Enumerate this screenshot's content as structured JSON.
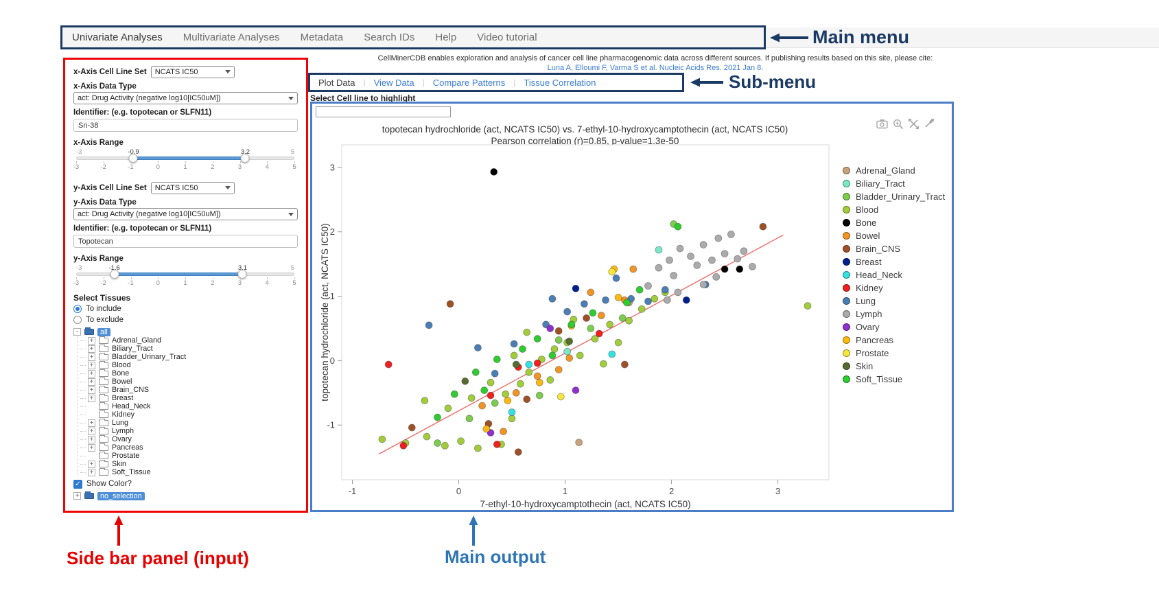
{
  "annotations": {
    "main_menu_label": "Main menu",
    "sub_menu_label": "Sub-menu",
    "sidebar_label": "Side bar panel (input)",
    "main_output_label": "Main output"
  },
  "ui_colors": {
    "ann_navy": "#1b3a63",
    "ann_red": "#e60000",
    "ann_blue": "#2e75b6",
    "sidebar_box_red": "#ee0404",
    "output_box_blue": "#4a7cc7",
    "link_blue": "#3a7bd5",
    "selection_blue": "#4d8fd6",
    "slider_blue": "#5b9bd5",
    "checkbox_blue": "#2e7ad1",
    "folder_blue": "#3a6fb0"
  },
  "main_menu": {
    "items": [
      {
        "label": "Univariate Analyses",
        "active": true
      },
      {
        "label": "Multivariate Analyses",
        "active": false
      },
      {
        "label": "Metadata",
        "active": false
      },
      {
        "label": "Search IDs",
        "active": false
      },
      {
        "label": "Help",
        "active": false
      },
      {
        "label": "Video tutorial",
        "active": false
      }
    ]
  },
  "citation": {
    "line1": "CellMinerCDB enables exploration and analysis of cancer cell line pharmacogenomic data across different sources. If publishing results based on this site, please cite:",
    "link": "Luna A, Elloumi F, Varma S et al. Nucleic Acids Res. 2021 Jan 8."
  },
  "sub_menu": {
    "items": [
      {
        "label": "Plot Data",
        "active": true
      },
      {
        "label": "View Data",
        "active": false
      },
      {
        "label": "Compare Patterns",
        "active": false
      },
      {
        "label": "Tissue Correlation",
        "active": false
      }
    ]
  },
  "highlight_label": "Select Cell line to highlight",
  "highlight_value": "",
  "sidebar": {
    "x_axis": {
      "cell_line_set_label": "x-Axis Cell Line Set",
      "cell_line_set_value": "NCATS IC50",
      "data_type_label": "x-Axis Data Type",
      "data_type_value": "act: Drug Activity (negative log10[IC50uM])",
      "identifier_label": "Identifier: (e.g. topotecan or SLFN11)",
      "identifier_value": "Sn-38",
      "range_label": "x-Axis Range",
      "range": {
        "min": -3,
        "max": 5,
        "from": -0.9,
        "to": 3.2,
        "ticks": [
          -3,
          -2,
          -1,
          0,
          1,
          2,
          3,
          4,
          5
        ]
      }
    },
    "y_axis": {
      "cell_line_set_label": "y-Axis Cell Line Set",
      "cell_line_set_value": "NCATS IC50",
      "data_type_label": "y-Axis Data Type",
      "data_type_value": "act: Drug Activity (negative log10[IC50uM])",
      "identifier_label": "Identifier: (e.g. topotecan or SLFN11)",
      "identifier_value": "Topotecan",
      "range_label": "y-Axis Range",
      "range": {
        "min": -3,
        "max": 5,
        "from": -1.6,
        "to": 3.1,
        "ticks": [
          -3,
          -2,
          -1,
          0,
          1,
          2,
          3,
          4,
          5
        ]
      }
    },
    "tissues": {
      "label": "Select Tissues",
      "include_option": "To include",
      "exclude_option": "To exclude",
      "include_selected": true,
      "root": "all",
      "items": [
        {
          "label": "Adrenal_Gland",
          "expandable": true
        },
        {
          "label": "Biliary_Tract",
          "expandable": true
        },
        {
          "label": "Bladder_Urinary_Tract",
          "expandable": true
        },
        {
          "label": "Blood",
          "expandable": true
        },
        {
          "label": "Bone",
          "expandable": true
        },
        {
          "label": "Bowel",
          "expandable": true
        },
        {
          "label": "Brain_CNS",
          "expandable": true
        },
        {
          "label": "Breast",
          "expandable": true
        },
        {
          "label": "Head_Neck",
          "expandable": false
        },
        {
          "label": "Kidney",
          "expandable": false
        },
        {
          "label": "Lung",
          "expandable": true
        },
        {
          "label": "Lymph",
          "expandable": true
        },
        {
          "label": "Ovary",
          "expandable": true
        },
        {
          "label": "Pancreas",
          "expandable": true
        },
        {
          "label": "Prostate",
          "expandable": false
        },
        {
          "label": "Skin",
          "expandable": true
        },
        {
          "label": "Soft_Tissue",
          "expandable": true
        }
      ],
      "show_color_label": "Show Color?",
      "show_color_checked": true,
      "no_selection_label": "no_selection"
    }
  },
  "plot_toolbar": {
    "icons": [
      "camera-icon",
      "zoom-in-icon",
      "autoscale-icon",
      "reset-axes-icon"
    ]
  },
  "chart_data": {
    "type": "scatter",
    "title": "topotecan hydrochloride (act, NCATS IC50) vs. 7-ethyl-10-hydroxycamptothecin (act, NCATS IC50)",
    "subtitle": "Pearson correlation (r)=0.85, p-value=1.3e-50",
    "xlabel": "7-ethyl-10-hydroxycamptothecin (act, NCATS IC50)",
    "ylabel": "topotecan hydrochloride (act, NCATS IC50)",
    "xlim": [
      -1.1,
      3.48
    ],
    "ylim": [
      -1.85,
      3.35
    ],
    "xticks": [
      -1,
      0,
      1,
      2,
      3
    ],
    "yticks": [
      -1,
      0,
      1,
      2,
      3
    ],
    "grid": false,
    "legend_position": "right",
    "pearson_r": 0.85,
    "p_value": "1.3e-50",
    "regression_line": {
      "x": [
        -0.75,
        3.05
      ],
      "y": [
        -1.45,
        1.95
      ],
      "color": "#ec7470"
    },
    "series": [
      {
        "name": "Adrenal_Gland",
        "color": "#c7a27c",
        "points": [
          [
            1.13,
            -1.27
          ],
          [
            1.6,
            0.9
          ]
        ]
      },
      {
        "name": "Biliary_Tract",
        "color": "#79e8c4",
        "points": [
          [
            1.02,
            0.14
          ],
          [
            1.88,
            1.72
          ]
        ]
      },
      {
        "name": "Bladder_Urinary_Tract",
        "color": "#7ccc50",
        "points": [
          [
            -0.2,
            -1.28
          ],
          [
            0.1,
            -0.9
          ],
          [
            0.34,
            -0.66
          ],
          [
            0.76,
            -0.54
          ],
          [
            0.94,
            0.32
          ],
          [
            1.24,
            0.5
          ],
          [
            1.54,
            0.66
          ],
          [
            2.02,
            2.12
          ]
        ]
      },
      {
        "name": "Blood",
        "color": "#a2cd3a",
        "points": [
          [
            -0.72,
            -1.22
          ],
          [
            -0.5,
            -1.28
          ],
          [
            -0.3,
            -1.18
          ],
          [
            -0.13,
            -1.32
          ],
          [
            0.02,
            -1.25
          ],
          [
            0.18,
            -1.36
          ],
          [
            0.4,
            -1.3
          ],
          [
            -0.32,
            -0.62
          ],
          [
            -0.1,
            -0.74
          ],
          [
            0.12,
            -0.58
          ],
          [
            0.3,
            -0.34
          ],
          [
            0.44,
            -0.52
          ],
          [
            0.58,
            -0.36
          ],
          [
            0.66,
            -0.18
          ],
          [
            0.52,
            0.08
          ],
          [
            0.78,
            0.02
          ],
          [
            0.9,
            0.18
          ],
          [
            1.02,
            0.28
          ],
          [
            1.14,
            0.08
          ],
          [
            1.28,
            0.34
          ],
          [
            1.42,
            0.56
          ],
          [
            1.6,
            0.62
          ],
          [
            1.72,
            0.8
          ],
          [
            1.84,
            0.96
          ],
          [
            1.5,
            0.28
          ],
          [
            1.08,
            0.64
          ],
          [
            0.64,
            0.44
          ],
          [
            3.28,
            0.85
          ],
          [
            1.94,
            1.06
          ],
          [
            0.5,
            -0.9
          ],
          [
            1.36,
            -0.05
          ],
          [
            0.86,
            -0.3
          ]
        ]
      },
      {
        "name": "Bone",
        "color": "#000000",
        "points": [
          [
            0.33,
            2.93
          ],
          [
            2.5,
            1.42
          ],
          [
            2.64,
            1.42
          ]
        ]
      },
      {
        "name": "Bowel",
        "color": "#f19426",
        "points": [
          [
            0.22,
            -0.7
          ],
          [
            0.54,
            -0.5
          ],
          [
            0.74,
            -0.24
          ],
          [
            1.04,
            0.04
          ],
          [
            1.34,
            0.7
          ],
          [
            1.56,
            0.94
          ],
          [
            0.42,
            -1.1
          ],
          [
            1.64,
            1.42
          ],
          [
            0.94,
            -0.14
          ],
          [
            1.24,
            1.06
          ]
        ]
      },
      {
        "name": "Brain_CNS",
        "color": "#9e5126",
        "points": [
          [
            -0.08,
            0.88
          ],
          [
            -0.44,
            -1.04
          ],
          [
            0.28,
            -0.98
          ],
          [
            0.64,
            -0.6
          ],
          [
            0.94,
            0.46
          ],
          [
            1.2,
            0.66
          ],
          [
            2.86,
            2.08
          ],
          [
            0.56,
            -1.42
          ],
          [
            1.56,
            -0.06
          ]
        ]
      },
      {
        "name": "Breast",
        "color": "#001f8f",
        "points": [
          [
            1.1,
            1.12
          ],
          [
            2.14,
            0.94
          ]
        ]
      },
      {
        "name": "Head_Neck",
        "color": "#35e0e0",
        "points": [
          [
            0.66,
            -0.06
          ],
          [
            0.5,
            -0.8
          ],
          [
            1.44,
            0.1
          ]
        ]
      },
      {
        "name": "Kidney",
        "color": "#ee2020",
        "points": [
          [
            -0.66,
            -0.06
          ],
          [
            -0.52,
            -1.32
          ],
          [
            0.3,
            -0.54
          ],
          [
            0.36,
            -1.3
          ],
          [
            0.56,
            -0.1
          ],
          [
            1.32,
            0.42
          ],
          [
            0.74,
            -0.04
          ]
        ]
      },
      {
        "name": "Lung",
        "color": "#4a7eb5",
        "points": [
          [
            -0.28,
            0.55
          ],
          [
            0.18,
            0.2
          ],
          [
            0.52,
            0.26
          ],
          [
            0.82,
            0.56
          ],
          [
            0.88,
            0.96
          ],
          [
            1.18,
            0.88
          ],
          [
            1.38,
            0.94
          ],
          [
            1.62,
            0.96
          ],
          [
            1.78,
            0.92
          ],
          [
            1.94,
            1.1
          ],
          [
            2.32,
            1.18
          ],
          [
            1.48,
            1.28
          ],
          [
            1.02,
            0.76
          ],
          [
            0.34,
            -0.2
          ]
        ]
      },
      {
        "name": "Lymph",
        "color": "#ababab",
        "points": [
          [
            1.78,
            1.16
          ],
          [
            1.88,
            1.44
          ],
          [
            1.98,
            1.56
          ],
          [
            2.02,
            1.32
          ],
          [
            2.08,
            1.74
          ],
          [
            2.18,
            1.62
          ],
          [
            2.24,
            1.48
          ],
          [
            2.3,
            1.8
          ],
          [
            2.38,
            1.56
          ],
          [
            2.44,
            1.9
          ],
          [
            2.5,
            1.66
          ],
          [
            2.56,
            1.96
          ],
          [
            2.62,
            1.58
          ],
          [
            2.68,
            1.7
          ],
          [
            2.3,
            1.18
          ],
          [
            2.06,
            1.06
          ],
          [
            1.96,
            0.94
          ],
          [
            2.76,
            1.46
          ],
          [
            2.42,
            1.3
          ]
        ]
      },
      {
        "name": "Ovary",
        "color": "#8f2fd0",
        "points": [
          [
            0.3,
            -1.12
          ],
          [
            1.1,
            -0.46
          ],
          [
            0.86,
            0.5
          ]
        ]
      },
      {
        "name": "Pancreas",
        "color": "#fdb913",
        "points": [
          [
            0.46,
            -0.62
          ],
          [
            0.76,
            -0.34
          ],
          [
            1.5,
            0.98
          ],
          [
            1.46,
            1.42
          ],
          [
            0.26,
            -1.06
          ],
          [
            1.06,
            0.54
          ]
        ]
      },
      {
        "name": "Prostate",
        "color": "#f7e73c",
        "points": [
          [
            0.96,
            -0.56
          ],
          [
            1.44,
            1.38
          ]
        ]
      },
      {
        "name": "Skin",
        "color": "#556b2f",
        "points": [
          [
            0.06,
            -0.32
          ],
          [
            0.54,
            -0.06
          ],
          [
            1.04,
            0.3
          ]
        ]
      },
      {
        "name": "Soft_Tissue",
        "color": "#2ecc2e",
        "points": [
          [
            -0.04,
            -0.52
          ],
          [
            0.16,
            -0.18
          ],
          [
            0.36,
            0.02
          ],
          [
            0.6,
            0.18
          ],
          [
            0.74,
            0.34
          ],
          [
            1.06,
            0.56
          ],
          [
            1.26,
            0.74
          ],
          [
            1.58,
            0.9
          ],
          [
            0.24,
            -0.46
          ],
          [
            0.88,
            0.08
          ],
          [
            -0.2,
            -0.88
          ],
          [
            2.06,
            2.08
          ],
          [
            1.7,
            1.1
          ]
        ]
      }
    ]
  }
}
